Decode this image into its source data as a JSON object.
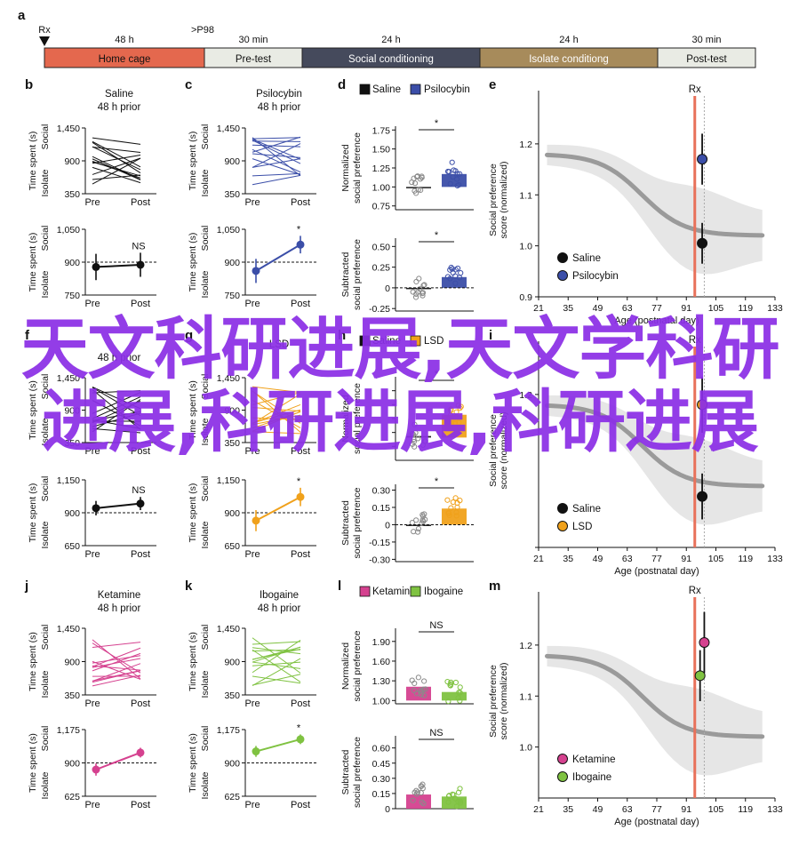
{
  "panel_letters": [
    "a",
    "b",
    "c",
    "d",
    "e",
    "f",
    "g",
    "h",
    "i",
    "j",
    "k",
    "l",
    "m"
  ],
  "timeline": {
    "markers": [
      {
        "label": "Rx"
      },
      {
        "label": ">P98"
      }
    ],
    "durations": [
      "48 h",
      "30 min",
      "24 h",
      "24 h",
      "30 min"
    ],
    "phases": [
      {
        "label": "Home cage",
        "color": "#e4684e"
      },
      {
        "label": "Pre-test",
        "color": "#e9ebe4"
      },
      {
        "label": "Social conditioning",
        "color": "#454a5c"
      },
      {
        "label": "Isolate conditiong",
        "color": "#a78b5b"
      },
      {
        "label": "Post-test",
        "color": "#e9ebe4"
      }
    ]
  },
  "axis_texts": {
    "time_spent": "Time spent (s)",
    "social": "Social",
    "isolate": "Isolate",
    "pre": "Pre",
    "post": "Post",
    "norm_pref": [
      "Normalized",
      "social preference"
    ],
    "sub_pref": [
      "Subtracted",
      "social preference"
    ],
    "score_pref": [
      "Social preference",
      "score (normalized)"
    ],
    "age": "Age (postnatal day)",
    "rx": "Rx"
  },
  "colors": {
    "saline": "#111111",
    "psilocybin": "#3b4ea8",
    "lsd": "#f0a11b",
    "ketamine": "#d5418f",
    "ibogaine": "#7fc241",
    "rx_line": "#e8715a",
    "trend": "#9a9a9a"
  },
  "chart_data": {
    "type": "figure",
    "paired_lines": [
      {
        "panel": "b",
        "title": [
          "Saline",
          "48 h prior"
        ],
        "yticks": [
          350,
          900,
          1450
        ],
        "color": "saline"
      },
      {
        "panel": "c",
        "title": [
          "Psilocybin",
          "48 h prior"
        ],
        "yticks": [
          350,
          900,
          1450
        ],
        "color": "psilocybin"
      },
      {
        "panel": "f",
        "title": [
          "",
          "48 h prior"
        ],
        "yticks": [
          350,
          900,
          1450
        ],
        "color": "saline"
      },
      {
        "panel": "g",
        "title": [
          "LSD",
          ""
        ],
        "yticks": [
          350,
          900,
          1450
        ],
        "color": "lsd"
      },
      {
        "panel": "j",
        "title": [
          "Ketamine",
          "48 h prior"
        ],
        "yticks": [
          350,
          900,
          1450
        ],
        "color": "ketamine"
      },
      {
        "panel": "k",
        "title": [
          "Ibogaine",
          "48 h prior"
        ],
        "yticks": [
          350,
          900,
          1450
        ],
        "color": "ibogaine"
      }
    ],
    "mean_diff": [
      {
        "panel": "b",
        "yticks": [
          750,
          900,
          1050
        ],
        "pre": 878,
        "post": 888,
        "err": [
          60,
          55
        ],
        "sig": "NS",
        "color": "saline"
      },
      {
        "panel": "c",
        "yticks": [
          750,
          900,
          1050
        ],
        "pre": 860,
        "post": 980,
        "err": [
          55,
          40
        ],
        "sig": "*",
        "color": "psilocybin"
      },
      {
        "panel": "f",
        "yticks": [
          650,
          900,
          1150
        ],
        "pre": 935,
        "post": 970,
        "err": [
          55,
          50
        ],
        "sig": "NS",
        "color": "saline"
      },
      {
        "panel": "g",
        "yticks": [
          650,
          900,
          1150
        ],
        "pre": 840,
        "post": 1020,
        "err": [
          80,
          70
        ],
        "sig": "*",
        "color": "lsd"
      },
      {
        "panel": "j",
        "yticks": [
          625,
          900,
          1175
        ],
        "pre": 845,
        "post": 985,
        "err": [
          50,
          40
        ],
        "sig": "",
        "color": "ketamine"
      },
      {
        "panel": "k",
        "yticks": [
          625,
          900,
          1175
        ],
        "pre": 995,
        "post": 1095,
        "err": [
          45,
          40
        ],
        "sig": "*",
        "color": "ibogaine"
      }
    ],
    "bars": [
      {
        "panel": "d",
        "legend": [
          "Saline",
          "Psilocybin"
        ],
        "groups": [
          "saline",
          "psilocybin"
        ],
        "norm": {
          "yticks": [
            "0.75",
            "1.00",
            "1.25",
            "1.50",
            "1.75"
          ],
          "ylim": [
            0.7,
            1.8
          ],
          "values": [
            1.0,
            1.17
          ],
          "sig": "*"
        },
        "sub": {
          "yticks": [
            "-0.25",
            "0",
            "0.25",
            "0.50"
          ],
          "ylim": [
            -0.28,
            0.6
          ],
          "values": [
            0.0,
            0.13
          ],
          "sig": "*"
        }
      },
      {
        "panel": "h",
        "legend": [
          "Saline",
          "LSD"
        ],
        "groups": [
          "saline",
          "lsd"
        ],
        "norm": {
          "yticks": [
            "",
            "",
            "",
            "",
            ""
          ],
          "ylim": [
            0.7,
            1.8
          ],
          "values": [
            1.02,
            1.3
          ],
          "sig": "*"
        },
        "sub": {
          "yticks": [
            "-0.30",
            "-0.15",
            "0",
            "0.15",
            "0.30"
          ],
          "ylim": [
            -0.32,
            0.35
          ],
          "values": [
            0.0,
            0.14
          ],
          "sig": "*"
        }
      },
      {
        "panel": "l",
        "legend": [
          "Ketamine",
          "Ibogaine"
        ],
        "groups": [
          "ketamine",
          "ibogaine"
        ],
        "norm": {
          "yticks": [
            "1.00",
            "1.30",
            "1.60",
            "1.90"
          ],
          "ylim": [
            0.95,
            2.1
          ],
          "values": [
            1.21,
            1.13
          ],
          "sig": "NS"
        },
        "sub": {
          "yticks": [
            "0",
            "0.15",
            "0.30",
            "0.45",
            "0.60"
          ],
          "ylim": [
            0,
            0.72
          ],
          "values": [
            0.14,
            0.12
          ],
          "sig": "NS"
        }
      }
    ],
    "age_curve": [
      {
        "panel": "e",
        "yticks": [
          "0.9",
          "1.0",
          "1.1",
          "1.2"
        ],
        "ylim": [
          0.9,
          1.28
        ],
        "xticks": [
          "21",
          "35",
          "49",
          "63",
          "77",
          "91",
          "105",
          "119",
          "133"
        ],
        "points": [
          {
            "group": "saline",
            "x": 98,
            "y": 1.005,
            "err": 0.04
          },
          {
            "group": "psilocybin",
            "x": 98,
            "y": 1.17,
            "err": 0.05
          }
        ],
        "legend": [
          "Saline",
          "Psilocybin"
        ]
      },
      {
        "panel": "i",
        "yticks": [
          "",
          "1.2"
        ],
        "ylim": [
          0.9,
          1.28
        ],
        "xticks": [
          "21",
          "35",
          "49",
          "63",
          "77",
          "91",
          "105",
          "119",
          "133"
        ],
        "points": [
          {
            "group": "saline",
            "x": 98,
            "y": 1.0,
            "err": 0.045
          },
          {
            "group": "lsd",
            "x": 98,
            "y": 1.18,
            "err": 0.055
          }
        ],
        "legend": [
          "Saline",
          "LSD"
        ]
      },
      {
        "panel": "m",
        "yticks": [
          "1.0",
          "1.1",
          "1.2"
        ],
        "ylim": [
          0.9,
          1.28
        ],
        "xticks": [
          "21",
          "35",
          "49",
          "63",
          "77",
          "91",
          "105",
          "119",
          "133"
        ],
        "points": [
          {
            "group": "ketamine",
            "x": 99,
            "y": 1.205,
            "err": 0.06
          },
          {
            "group": "ibogaine",
            "x": 97,
            "y": 1.14,
            "err": 0.05
          }
        ],
        "legend": [
          "Ketamine",
          "Ibogaine"
        ]
      }
    ]
  },
  "watermark": "天文科研进展,天文学科研进展,科研进展,科研进展"
}
